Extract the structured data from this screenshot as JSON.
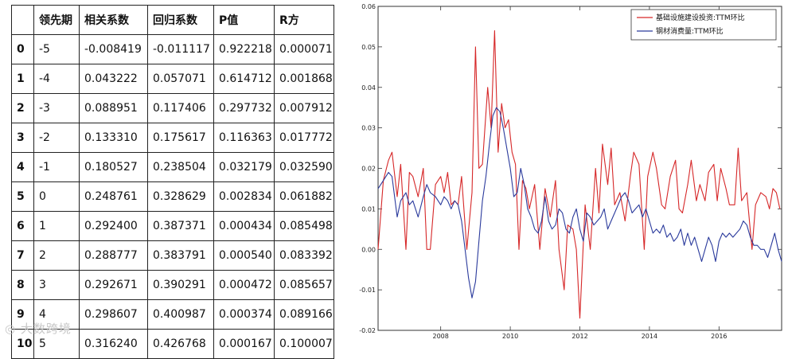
{
  "table": {
    "headers": [
      "",
      "领先期",
      "相关系数",
      "回归系数",
      "P值",
      "R方"
    ],
    "rows": [
      [
        "0",
        "-5",
        "-0.008419",
        "-0.011117",
        "0.922218",
        "0.000071"
      ],
      [
        "1",
        "-4",
        "0.043222",
        "0.057071",
        "0.614712",
        "0.001868"
      ],
      [
        "2",
        "-3",
        "0.088951",
        "0.117406",
        "0.297732",
        "0.007912"
      ],
      [
        "3",
        "-2",
        "0.133310",
        "0.175617",
        "0.116363",
        "0.017772"
      ],
      [
        "4",
        "-1",
        "0.180527",
        "0.238504",
        "0.032179",
        "0.032590"
      ],
      [
        "5",
        "0",
        "0.248761",
        "0.328629",
        "0.002834",
        "0.061882"
      ],
      [
        "6",
        "1",
        "0.292400",
        "0.387371",
        "0.000434",
        "0.085498"
      ],
      [
        "7",
        "2",
        "0.288777",
        "0.383791",
        "0.000540",
        "0.083392"
      ],
      [
        "8",
        "3",
        "0.292671",
        "0.390291",
        "0.000472",
        "0.085657"
      ],
      [
        "9",
        "4",
        "0.298607",
        "0.400987",
        "0.000374",
        "0.089166"
      ],
      [
        "10",
        "5",
        "0.316240",
        "0.426768",
        "0.000167",
        "0.100007"
      ]
    ]
  },
  "chart_data": {
    "type": "line",
    "title": "",
    "xlabel": "",
    "ylabel": "",
    "xlim": [
      2006.2,
      2017.8
    ],
    "ylim": [
      -0.02,
      0.06
    ],
    "xticks": [
      2008,
      2010,
      2012,
      2014,
      2016
    ],
    "xtick_labels": [
      "2008",
      "2010",
      "2012",
      "2014",
      "2016"
    ],
    "yticks": [
      -0.02,
      -0.01,
      0.0,
      0.01,
      0.02,
      0.03,
      0.04,
      0.05,
      0.06
    ],
    "ytick_labels": [
      "-0.02",
      "-0.01",
      "0.00",
      "0.01",
      "0.02",
      "0.03",
      "0.04",
      "0.05",
      "0.06"
    ],
    "grid": false,
    "legend_position": "top-right",
    "series": [
      {
        "name": "基础设施建设投资:TTM环比",
        "color": "#d62728",
        "points": [
          [
            2006.2,
            0.0
          ],
          [
            2006.35,
            0.017
          ],
          [
            2006.5,
            0.022
          ],
          [
            2006.6,
            0.024
          ],
          [
            2006.75,
            0.013
          ],
          [
            2006.85,
            0.021
          ],
          [
            2007.0,
            0.0
          ],
          [
            2007.1,
            0.019
          ],
          [
            2007.2,
            0.018
          ],
          [
            2007.35,
            0.013
          ],
          [
            2007.5,
            0.02
          ],
          [
            2007.6,
            0.0
          ],
          [
            2007.7,
            0.0
          ],
          [
            2007.85,
            0.016
          ],
          [
            2008.0,
            0.018
          ],
          [
            2008.1,
            0.014
          ],
          [
            2008.2,
            0.019
          ],
          [
            2008.3,
            0.011
          ],
          [
            2008.4,
            0.012
          ],
          [
            2008.5,
            0.011
          ],
          [
            2008.6,
            0.018
          ],
          [
            2008.75,
            0.0
          ],
          [
            2008.9,
            0.014
          ],
          [
            2009.0,
            0.05
          ],
          [
            2009.1,
            0.02
          ],
          [
            2009.2,
            0.021
          ],
          [
            2009.35,
            0.04
          ],
          [
            2009.45,
            0.03
          ],
          [
            2009.55,
            0.054
          ],
          [
            2009.65,
            0.024
          ],
          [
            2009.75,
            0.036
          ],
          [
            2009.85,
            0.03
          ],
          [
            2009.95,
            0.032
          ],
          [
            2010.05,
            0.024
          ],
          [
            2010.15,
            0.021
          ],
          [
            2010.25,
            0.0
          ],
          [
            2010.35,
            0.017
          ],
          [
            2010.45,
            0.015
          ],
          [
            2010.55,
            0.01
          ],
          [
            2010.7,
            0.016
          ],
          [
            2010.85,
            0.0
          ],
          [
            2011.0,
            0.015
          ],
          [
            2011.15,
            0.008
          ],
          [
            2011.3,
            0.017
          ],
          [
            2011.4,
            0.0
          ],
          [
            2011.55,
            -0.01
          ],
          [
            2011.65,
            0.006
          ],
          [
            2011.8,
            0.005
          ],
          [
            2011.9,
            0.0
          ],
          [
            2012.0,
            -0.017
          ],
          [
            2012.15,
            0.011
          ],
          [
            2012.3,
            0.0
          ],
          [
            2012.45,
            0.02
          ],
          [
            2012.55,
            0.009
          ],
          [
            2012.65,
            0.026
          ],
          [
            2012.8,
            0.016
          ],
          [
            2012.9,
            0.025
          ],
          [
            2013.0,
            0.011
          ],
          [
            2013.15,
            0.014
          ],
          [
            2013.3,
            0.007
          ],
          [
            2013.45,
            0.018
          ],
          [
            2013.55,
            0.024
          ],
          [
            2013.7,
            0.021
          ],
          [
            2013.85,
            0.0
          ],
          [
            2013.95,
            0.018
          ],
          [
            2014.1,
            0.024
          ],
          [
            2014.2,
            0.02
          ],
          [
            2014.35,
            0.011
          ],
          [
            2014.45,
            0.01
          ],
          [
            2014.6,
            0.018
          ],
          [
            2014.75,
            0.022
          ],
          [
            2014.85,
            0.01
          ],
          [
            2014.95,
            0.009
          ],
          [
            2015.1,
            0.016
          ],
          [
            2015.2,
            0.022
          ],
          [
            2015.35,
            0.012
          ],
          [
            2015.45,
            0.016
          ],
          [
            2015.6,
            0.012
          ],
          [
            2015.7,
            0.019
          ],
          [
            2015.85,
            0.021
          ],
          [
            2015.95,
            0.012
          ],
          [
            2016.05,
            0.02
          ],
          [
            2016.2,
            0.015
          ],
          [
            2016.3,
            0.011
          ],
          [
            2016.45,
            0.011
          ],
          [
            2016.55,
            0.025
          ],
          [
            2016.65,
            0.012
          ],
          [
            2016.8,
            0.014
          ],
          [
            2016.95,
            0.0
          ],
          [
            2017.05,
            0.011
          ],
          [
            2017.2,
            0.014
          ],
          [
            2017.35,
            0.013
          ],
          [
            2017.45,
            0.01
          ],
          [
            2017.55,
            0.015
          ],
          [
            2017.65,
            0.014
          ],
          [
            2017.75,
            0.01
          ]
        ]
      },
      {
        "name": "钢材消费量:TTM环比",
        "color": "#2a3a9c",
        "points": [
          [
            2006.2,
            0.015
          ],
          [
            2006.35,
            0.017
          ],
          [
            2006.5,
            0.019
          ],
          [
            2006.6,
            0.018
          ],
          [
            2006.75,
            0.008
          ],
          [
            2006.85,
            0.012
          ],
          [
            2007.0,
            0.014
          ],
          [
            2007.1,
            0.011
          ],
          [
            2007.2,
            0.012
          ],
          [
            2007.35,
            0.008
          ],
          [
            2007.5,
            0.013
          ],
          [
            2007.6,
            0.016
          ],
          [
            2007.7,
            0.014
          ],
          [
            2007.85,
            0.013
          ],
          [
            2008.0,
            0.011
          ],
          [
            2008.1,
            0.013
          ],
          [
            2008.2,
            0.012
          ],
          [
            2008.3,
            0.01
          ],
          [
            2008.4,
            0.012
          ],
          [
            2008.5,
            0.011
          ],
          [
            2008.6,
            0.007
          ],
          [
            2008.7,
            0.0
          ],
          [
            2008.8,
            -0.007
          ],
          [
            2008.9,
            -0.012
          ],
          [
            2009.0,
            -0.008
          ],
          [
            2009.1,
            0.002
          ],
          [
            2009.2,
            0.012
          ],
          [
            2009.3,
            0.018
          ],
          [
            2009.4,
            0.026
          ],
          [
            2009.5,
            0.033
          ],
          [
            2009.6,
            0.035
          ],
          [
            2009.7,
            0.034
          ],
          [
            2009.8,
            0.03
          ],
          [
            2009.9,
            0.025
          ],
          [
            2010.0,
            0.02
          ],
          [
            2010.1,
            0.013
          ],
          [
            2010.2,
            0.014
          ],
          [
            2010.3,
            0.02
          ],
          [
            2010.4,
            0.016
          ],
          [
            2010.5,
            0.01
          ],
          [
            2010.6,
            0.008
          ],
          [
            2010.7,
            0.005
          ],
          [
            2010.8,
            0.004
          ],
          [
            2010.9,
            0.007
          ],
          [
            2011.0,
            0.013
          ],
          [
            2011.1,
            0.007
          ],
          [
            2011.2,
            0.005
          ],
          [
            2011.3,
            0.006
          ],
          [
            2011.4,
            0.01
          ],
          [
            2011.5,
            0.009
          ],
          [
            2011.6,
            0.005
          ],
          [
            2011.7,
            0.004
          ],
          [
            2011.8,
            0.008
          ],
          [
            2011.9,
            0.01
          ],
          [
            2012.0,
            0.005
          ],
          [
            2012.1,
            0.002
          ],
          [
            2012.2,
            0.009
          ],
          [
            2012.3,
            0.008
          ],
          [
            2012.4,
            0.006
          ],
          [
            2012.5,
            0.007
          ],
          [
            2012.6,
            0.008
          ],
          [
            2012.7,
            0.01
          ],
          [
            2012.8,
            0.005
          ],
          [
            2012.9,
            0.007
          ],
          [
            2013.0,
            0.009
          ],
          [
            2013.1,
            0.011
          ],
          [
            2013.2,
            0.013
          ],
          [
            2013.3,
            0.014
          ],
          [
            2013.4,
            0.012
          ],
          [
            2013.5,
            0.009
          ],
          [
            2013.6,
            0.01
          ],
          [
            2013.7,
            0.011
          ],
          [
            2013.8,
            0.008
          ],
          [
            2013.9,
            0.01
          ],
          [
            2014.0,
            0.007
          ],
          [
            2014.1,
            0.004
          ],
          [
            2014.2,
            0.005
          ],
          [
            2014.3,
            0.004
          ],
          [
            2014.4,
            0.006
          ],
          [
            2014.5,
            0.003
          ],
          [
            2014.6,
            0.004
          ],
          [
            2014.7,
            0.002
          ],
          [
            2014.8,
            0.003
          ],
          [
            2014.9,
            0.005
          ],
          [
            2015.0,
            0.001
          ],
          [
            2015.1,
            0.004
          ],
          [
            2015.2,
            0.001
          ],
          [
            2015.3,
            0.003
          ],
          [
            2015.4,
            0.0
          ],
          [
            2015.5,
            -0.003
          ],
          [
            2015.6,
            0.0
          ],
          [
            2015.7,
            0.003
          ],
          [
            2015.8,
            0.001
          ],
          [
            2015.9,
            -0.003
          ],
          [
            2016.0,
            0.002
          ],
          [
            2016.1,
            0.004
          ],
          [
            2016.2,
            0.003
          ],
          [
            2016.3,
            0.004
          ],
          [
            2016.4,
            0.003
          ],
          [
            2016.5,
            0.004
          ],
          [
            2016.6,
            0.005
          ],
          [
            2016.7,
            0.007
          ],
          [
            2016.8,
            0.006
          ],
          [
            2016.9,
            0.003
          ],
          [
            2017.0,
            0.001
          ],
          [
            2017.1,
            0.001
          ],
          [
            2017.2,
            0.0
          ],
          [
            2017.3,
            0.0
          ],
          [
            2017.4,
            -0.002
          ],
          [
            2017.5,
            0.001
          ],
          [
            2017.6,
            0.004
          ],
          [
            2017.7,
            0.0
          ],
          [
            2017.8,
            -0.003
          ]
        ]
      }
    ]
  },
  "watermark": {
    "text": "大数跨境"
  }
}
